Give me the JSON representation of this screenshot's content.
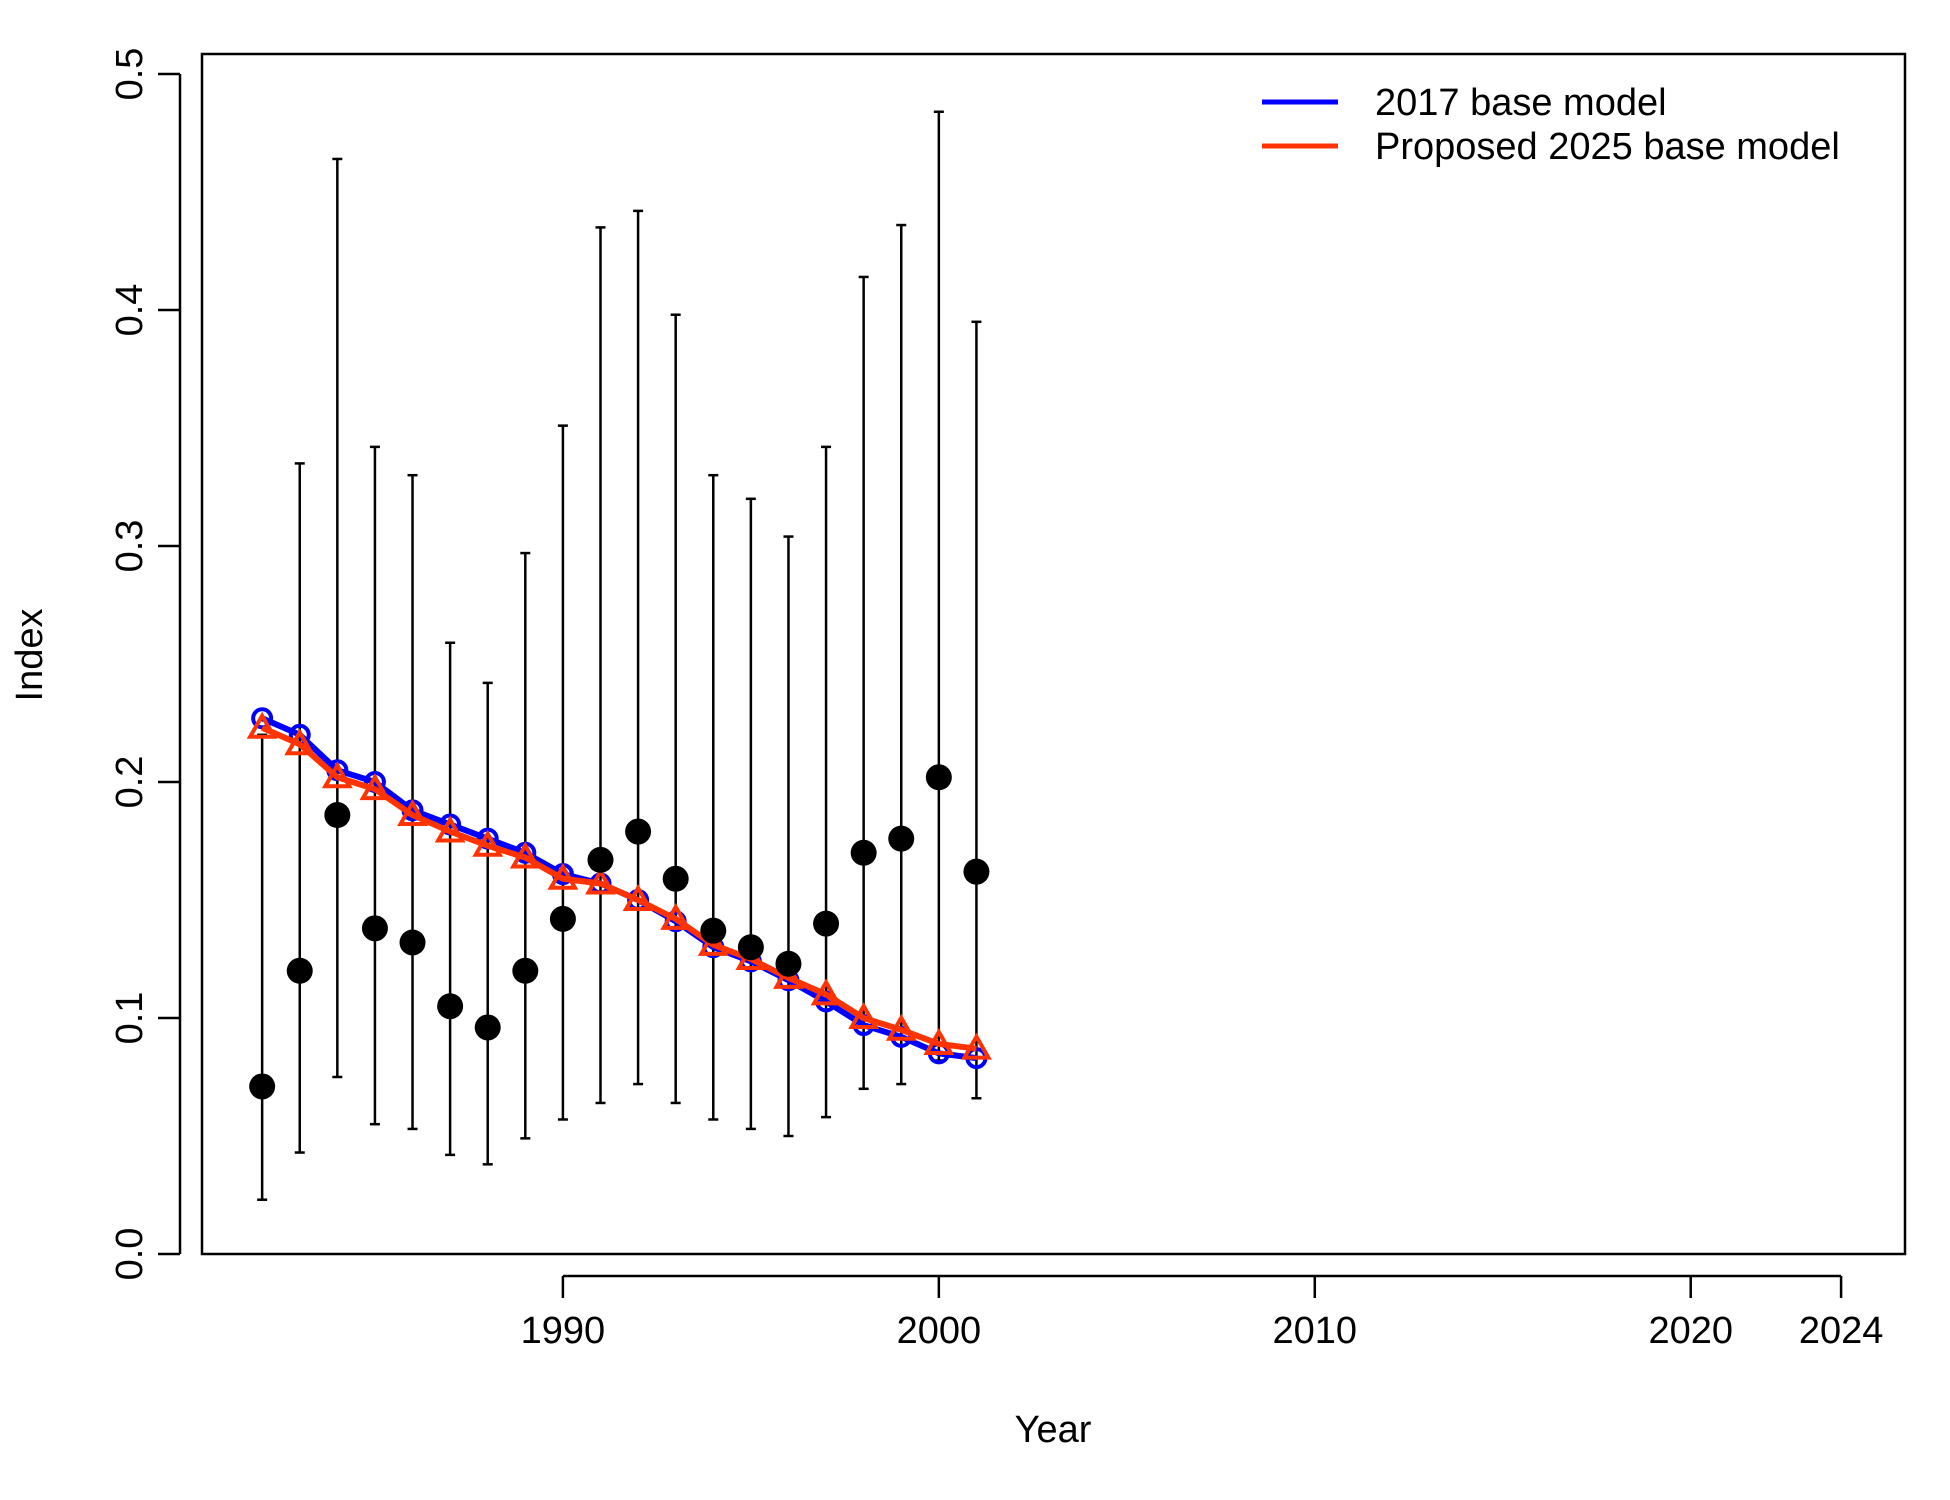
{
  "chart_data": {
    "type": "line",
    "xlabel": "Year",
    "ylabel": "Index",
    "xlim": [
      1980.4,
      2025.7
    ],
    "ylim": [
      0,
      0.5
    ],
    "x_ticks": [
      1990,
      2000,
      2010,
      2020,
      2024
    ],
    "y_ticks": [
      0.0,
      0.1,
      0.2,
      0.3,
      0.4,
      0.5
    ],
    "y_tick_labels": [
      "0.0",
      "0.1",
      "0.2",
      "0.3",
      "0.4",
      "0.5"
    ],
    "grid": false,
    "legend_position": "top-right",
    "observed": {
      "years": [
        1982,
        1983,
        1984,
        1985,
        1986,
        1987,
        1988,
        1989,
        1990,
        1991,
        1992,
        1993,
        1994,
        1995,
        1996,
        1997,
        1998,
        1999,
        2000,
        2001
      ],
      "values": [
        0.071,
        0.12,
        0.186,
        0.138,
        0.132,
        0.105,
        0.096,
        0.12,
        0.142,
        0.167,
        0.179,
        0.159,
        0.137,
        0.13,
        0.123,
        0.14,
        0.17,
        0.176,
        0.202,
        0.162
      ],
      "lower": [
        0.023,
        0.043,
        0.075,
        0.055,
        0.053,
        0.042,
        0.038,
        0.049,
        0.057,
        0.064,
        0.072,
        0.064,
        0.057,
        0.053,
        0.05,
        0.058,
        0.07,
        0.072,
        0.082,
        0.066
      ],
      "upper": [
        0.22,
        0.335,
        0.464,
        0.342,
        0.33,
        0.259,
        0.242,
        0.297,
        0.351,
        0.435,
        0.442,
        0.398,
        0.33,
        0.32,
        0.304,
        0.342,
        0.414,
        0.436,
        0.484,
        0.395
      ]
    },
    "series": [
      {
        "name": "2017 base model",
        "color": "#0000ff",
        "marker": "circle",
        "years": [
          1982,
          1983,
          1984,
          1985,
          1986,
          1987,
          1988,
          1989,
          1990,
          1991,
          1992,
          1993,
          1994,
          1995,
          1996,
          1997,
          1998,
          1999,
          2000,
          2001
        ],
        "values": [
          0.227,
          0.22,
          0.205,
          0.2,
          0.188,
          0.182,
          0.176,
          0.17,
          0.161,
          0.157,
          0.15,
          0.141,
          0.13,
          0.124,
          0.116,
          0.107,
          0.097,
          0.092,
          0.085,
          0.083
        ]
      },
      {
        "name": "Proposed 2025 base model",
        "color": "#ff3300",
        "marker": "triangle",
        "years": [
          1982,
          1983,
          1984,
          1985,
          1986,
          1987,
          1988,
          1989,
          1990,
          1991,
          1992,
          1993,
          1994,
          1995,
          1996,
          1997,
          1998,
          1999,
          2000,
          2001
        ],
        "values": [
          0.223,
          0.216,
          0.202,
          0.197,
          0.186,
          0.179,
          0.173,
          0.168,
          0.159,
          0.157,
          0.15,
          0.142,
          0.131,
          0.125,
          0.117,
          0.11,
          0.1,
          0.095,
          0.089,
          0.087
        ]
      }
    ]
  }
}
